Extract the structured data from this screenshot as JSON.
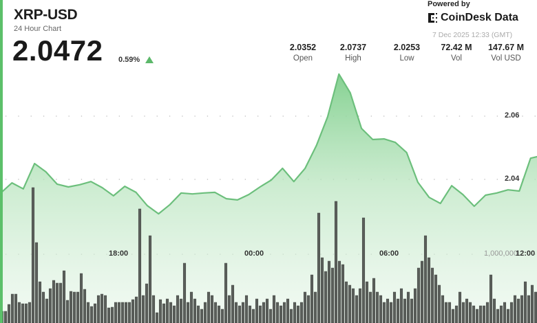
{
  "header": {
    "title": "XRP-USD",
    "subtitle": "24 Hour Chart",
    "price": "2.0472",
    "change": "0.59%",
    "change_direction_icon": "up-triangle-icon",
    "powered_by": "Powered by",
    "brand": "CoinDesk Data",
    "timestamp": "7 Dec 2025 12:33 (GMT)"
  },
  "stats": [
    {
      "value": "2.0352",
      "label": "Open"
    },
    {
      "value": "2.0737",
      "label": "High"
    },
    {
      "value": "2.0253",
      "label": "Low"
    },
    {
      "value": "72.42 M",
      "label": "Vol"
    },
    {
      "value": "147.67 M",
      "label": "Vol USD"
    }
  ],
  "colors": {
    "line": "#6cbf7c",
    "fill": "#8fd49a",
    "volume_bar": "#5b5f5b",
    "accent": "#5cc06a"
  },
  "chart_data": {
    "type": "line",
    "price_series": {
      "times": [
        "12:45",
        "13:15",
        "13:45",
        "14:15",
        "14:45",
        "15:15",
        "15:45",
        "16:15",
        "16:45",
        "17:15",
        "17:45",
        "18:15",
        "18:45",
        "19:15",
        "19:45",
        "20:15",
        "20:45",
        "21:15",
        "21:45",
        "22:15",
        "22:45",
        "23:15",
        "23:45",
        "00:15",
        "00:45",
        "01:15",
        "01:45",
        "02:15",
        "02:45",
        "03:15",
        "03:45",
        "04:15",
        "04:45",
        "05:15",
        "05:45",
        "06:15",
        "06:45",
        "07:15",
        "07:45",
        "08:15",
        "08:45",
        "09:15",
        "09:45",
        "10:15",
        "10:45",
        "11:15",
        "11:45",
        "12:15",
        "12:33"
      ],
      "values": [
        2.0357,
        2.0389,
        2.037,
        2.045,
        2.0424,
        2.0385,
        2.0376,
        2.0383,
        2.0393,
        2.0374,
        2.0348,
        2.0378,
        2.0359,
        2.0317,
        2.0291,
        2.032,
        2.0357,
        2.0354,
        2.0357,
        2.0359,
        2.0339,
        2.0335,
        2.0352,
        2.0376,
        2.0398,
        2.0435,
        2.0393,
        2.0435,
        2.0507,
        2.0598,
        2.0733,
        2.0674,
        2.0561,
        2.0526,
        2.0528,
        2.0517,
        2.0485,
        2.0391,
        2.0343,
        2.0324,
        2.038,
        2.0352,
        2.0315,
        2.035,
        2.0357,
        2.0367,
        2.0363,
        2.0467,
        2.0472
      ]
    },
    "volume_series_millions": [
      0.17,
      0.17,
      0.27,
      0.42,
      0.42,
      0.3,
      0.28,
      0.28,
      0.3,
      1.97,
      1.17,
      0.6,
      0.45,
      0.35,
      0.5,
      0.62,
      0.58,
      0.58,
      0.76,
      0.33,
      0.46,
      0.45,
      0.45,
      0.72,
      0.49,
      0.3,
      0.24,
      0.28,
      0.4,
      0.42,
      0.4,
      0.22,
      0.23,
      0.3,
      0.3,
      0.3,
      0.3,
      0.3,
      0.34,
      0.38,
      1.66,
      0.4,
      0.57,
      1.27,
      0.4,
      0.15,
      0.34,
      0.28,
      0.35,
      0.3,
      0.25,
      0.4,
      0.35,
      0.87,
      0.3,
      0.45,
      0.35,
      0.25,
      0.2,
      0.3,
      0.45,
      0.4,
      0.3,
      0.25,
      0.2,
      0.87,
      0.4,
      0.55,
      0.3,
      0.25,
      0.3,
      0.4,
      0.25,
      0.2,
      0.35,
      0.25,
      0.3,
      0.35,
      0.2,
      0.4,
      0.3,
      0.25,
      0.3,
      0.35,
      0.2,
      0.3,
      0.25,
      0.3,
      0.45,
      0.4,
      0.7,
      0.45,
      1.6,
      0.95,
      0.75,
      0.9,
      0.8,
      1.77,
      0.9,
      0.85,
      0.6,
      0.55,
      0.5,
      0.4,
      0.5,
      1.53,
      0.6,
      0.45,
      0.65,
      0.45,
      0.4,
      0.3,
      0.35,
      0.3,
      0.45,
      0.35,
      0.5,
      0.35,
      0.45,
      0.35,
      0.5,
      0.8,
      0.9,
      1.27,
      0.95,
      0.8,
      0.7,
      0.55,
      0.4,
      0.3,
      0.3,
      0.2,
      0.25,
      0.45,
      0.3,
      0.35,
      0.3,
      0.25,
      0.2,
      0.25,
      0.25,
      0.3,
      0.7,
      0.35,
      0.2,
      0.25,
      0.3,
      0.2,
      0.3,
      0.4,
      0.35,
      0.4,
      0.6,
      0.4,
      0.55,
      0.45
    ],
    "y_ticks": [
      "2.06",
      "2.04"
    ],
    "x_ticks": [
      "18:00",
      "00:00",
      "06:00",
      "12:00"
    ],
    "volume_tick": "1,000,000",
    "ylim": [
      2.0215,
      2.0765
    ],
    "grid": "dotted-horizontal",
    "legend": "none"
  }
}
